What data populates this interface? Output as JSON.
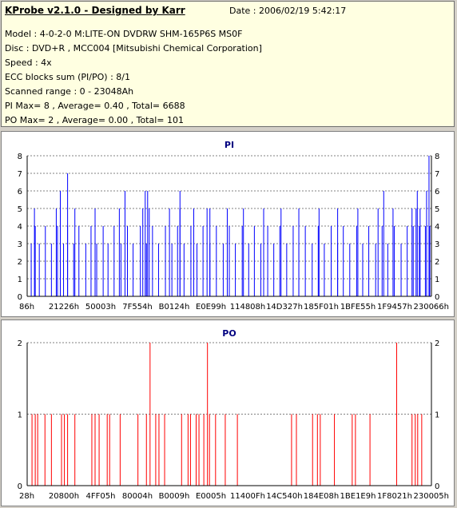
{
  "header": {
    "title": "KProbe v2.1.0 - Designed by Karr",
    "date": "Date : 2006/02/19 5:42:17",
    "lines": [
      "Model : 4-0-2-0 M:LITE-ON DVDRW SHM-165P6S MS0F",
      "Disc : DVD+R , MCC004 [Mitsubishi Chemical Corporation]",
      "Speed : 4x",
      "ECC blocks sum (PI/PO) : 8/1",
      "Scanned range : 0 - 23048Ah",
      "PI Max= 8 , Average= 0.40 , Total= 6688",
      "PO Max= 2 , Average= 0.00 , Total= 101"
    ]
  },
  "chart_data": [
    {
      "type": "bar",
      "title": "PI",
      "color": "#0000ff",
      "ylim": [
        0,
        8
      ],
      "yticks": [
        "0",
        "1",
        "2",
        "3",
        "4",
        "5",
        "6",
        "7",
        "8"
      ],
      "xticks": [
        "86h",
        "21226h",
        "50003h",
        "7F554h",
        "B0124h",
        "E0E99h",
        "114808h",
        "14D327h",
        "185F01h",
        "1BFE55h",
        "1F9457h",
        "230066h"
      ],
      "grid": true,
      "spikes": [
        {
          "x": 0.0,
          "v": 4
        },
        {
          "x": 0.01,
          "v": 3
        },
        {
          "x": 0.02,
          "v": 4
        },
        {
          "x": 0.03,
          "v": 3
        },
        {
          "x": 0.045,
          "v": 4
        },
        {
          "x": 0.06,
          "v": 3
        },
        {
          "x": 0.075,
          "v": 4
        },
        {
          "x": 0.09,
          "v": 3
        },
        {
          "x": 0.1,
          "v": 4
        },
        {
          "x": 0.115,
          "v": 3
        },
        {
          "x": 0.128,
          "v": 4
        },
        {
          "x": 0.145,
          "v": 3
        },
        {
          "x": 0.158,
          "v": 4
        },
        {
          "x": 0.172,
          "v": 3
        },
        {
          "x": 0.188,
          "v": 4
        },
        {
          "x": 0.2,
          "v": 3
        },
        {
          "x": 0.215,
          "v": 4
        },
        {
          "x": 0.232,
          "v": 3
        },
        {
          "x": 0.248,
          "v": 4
        },
        {
          "x": 0.262,
          "v": 3
        },
        {
          "x": 0.28,
          "v": 4
        },
        {
          "x": 0.295,
          "v": 3
        },
        {
          "x": 0.31,
          "v": 4
        },
        {
          "x": 0.325,
          "v": 3
        },
        {
          "x": 0.342,
          "v": 4
        },
        {
          "x": 0.358,
          "v": 3
        },
        {
          "x": 0.372,
          "v": 4
        },
        {
          "x": 0.388,
          "v": 3
        },
        {
          "x": 0.405,
          "v": 4
        },
        {
          "x": 0.42,
          "v": 3
        },
        {
          "x": 0.435,
          "v": 4
        },
        {
          "x": 0.452,
          "v": 3
        },
        {
          "x": 0.468,
          "v": 4
        },
        {
          "x": 0.485,
          "v": 3
        },
        {
          "x": 0.5,
          "v": 4
        },
        {
          "x": 0.515,
          "v": 3
        },
        {
          "x": 0.532,
          "v": 4
        },
        {
          "x": 0.548,
          "v": 3
        },
        {
          "x": 0.562,
          "v": 4
        },
        {
          "x": 0.578,
          "v": 3
        },
        {
          "x": 0.595,
          "v": 4
        },
        {
          "x": 0.61,
          "v": 3
        },
        {
          "x": 0.625,
          "v": 4
        },
        {
          "x": 0.642,
          "v": 3
        },
        {
          "x": 0.658,
          "v": 4
        },
        {
          "x": 0.672,
          "v": 3
        },
        {
          "x": 0.688,
          "v": 4
        },
        {
          "x": 0.705,
          "v": 3
        },
        {
          "x": 0.72,
          "v": 4
        },
        {
          "x": 0.735,
          "v": 3
        },
        {
          "x": 0.752,
          "v": 4
        },
        {
          "x": 0.768,
          "v": 3
        },
        {
          "x": 0.782,
          "v": 4
        },
        {
          "x": 0.798,
          "v": 3
        },
        {
          "x": 0.815,
          "v": 4
        },
        {
          "x": 0.83,
          "v": 3
        },
        {
          "x": 0.845,
          "v": 4
        },
        {
          "x": 0.862,
          "v": 3
        },
        {
          "x": 0.878,
          "v": 4
        },
        {
          "x": 0.892,
          "v": 3
        },
        {
          "x": 0.908,
          "v": 4
        },
        {
          "x": 0.925,
          "v": 3
        },
        {
          "x": 0.94,
          "v": 4
        },
        {
          "x": 0.955,
          "v": 4
        },
        {
          "x": 0.97,
          "v": 4
        },
        {
          "x": 0.985,
          "v": 4
        },
        {
          "x": 0.996,
          "v": 4
        },
        {
          "x": 0.018,
          "v": 5
        },
        {
          "x": 0.072,
          "v": 5
        },
        {
          "x": 0.118,
          "v": 5
        },
        {
          "x": 0.168,
          "v": 5
        },
        {
          "x": 0.228,
          "v": 5
        },
        {
          "x": 0.286,
          "v": 5
        },
        {
          "x": 0.302,
          "v": 5
        },
        {
          "x": 0.352,
          "v": 5
        },
        {
          "x": 0.378,
          "v": 5
        },
        {
          "x": 0.412,
          "v": 5
        },
        {
          "x": 0.445,
          "v": 5
        },
        {
          "x": 0.452,
          "v": 5
        },
        {
          "x": 0.495,
          "v": 5
        },
        {
          "x": 0.535,
          "v": 5
        },
        {
          "x": 0.585,
          "v": 5
        },
        {
          "x": 0.628,
          "v": 5
        },
        {
          "x": 0.672,
          "v": 5
        },
        {
          "x": 0.722,
          "v": 5
        },
        {
          "x": 0.768,
          "v": 5
        },
        {
          "x": 0.818,
          "v": 5
        },
        {
          "x": 0.868,
          "v": 5
        },
        {
          "x": 0.905,
          "v": 5
        },
        {
          "x": 0.952,
          "v": 5
        },
        {
          "x": 0.962,
          "v": 5
        },
        {
          "x": 0.972,
          "v": 5
        },
        {
          "x": 0.082,
          "v": 6
        },
        {
          "x": 0.242,
          "v": 6
        },
        {
          "x": 0.292,
          "v": 6
        },
        {
          "x": 0.298,
          "v": 6
        },
        {
          "x": 0.378,
          "v": 6
        },
        {
          "x": 0.882,
          "v": 6
        },
        {
          "x": 0.965,
          "v": 6
        },
        {
          "x": 0.988,
          "v": 6
        },
        {
          "x": 0.1,
          "v": 7
        },
        {
          "x": 0.994,
          "v": 8
        }
      ]
    },
    {
      "type": "bar",
      "title": "PO",
      "color": "#ff0000",
      "ylim": [
        0,
        2
      ],
      "yticks": [
        "0",
        "1",
        "2"
      ],
      "xticks": [
        "28h",
        "20800h",
        "4FF05h",
        "80004h",
        "B0009h",
        "E0005h",
        "11400Fh",
        "14C540h",
        "184E08h",
        "1BE1E9h",
        "1F8021h",
        "230005h"
      ],
      "grid": true,
      "spikes": [
        {
          "x": 0.012,
          "v": 1
        },
        {
          "x": 0.02,
          "v": 1
        },
        {
          "x": 0.026,
          "v": 1
        },
        {
          "x": 0.044,
          "v": 1
        },
        {
          "x": 0.06,
          "v": 1
        },
        {
          "x": 0.085,
          "v": 1
        },
        {
          "x": 0.092,
          "v": 1
        },
        {
          "x": 0.1,
          "v": 1
        },
        {
          "x": 0.118,
          "v": 1
        },
        {
          "x": 0.16,
          "v": 1
        },
        {
          "x": 0.168,
          "v": 1
        },
        {
          "x": 0.178,
          "v": 1
        },
        {
          "x": 0.198,
          "v": 1
        },
        {
          "x": 0.204,
          "v": 1
        },
        {
          "x": 0.23,
          "v": 1
        },
        {
          "x": 0.274,
          "v": 1
        },
        {
          "x": 0.295,
          "v": 1
        },
        {
          "x": 0.318,
          "v": 1
        },
        {
          "x": 0.326,
          "v": 1
        },
        {
          "x": 0.34,
          "v": 1
        },
        {
          "x": 0.382,
          "v": 1
        },
        {
          "x": 0.398,
          "v": 1
        },
        {
          "x": 0.404,
          "v": 1
        },
        {
          "x": 0.418,
          "v": 1
        },
        {
          "x": 0.425,
          "v": 1
        },
        {
          "x": 0.437,
          "v": 1
        },
        {
          "x": 0.451,
          "v": 1
        },
        {
          "x": 0.466,
          "v": 1
        },
        {
          "x": 0.49,
          "v": 1
        },
        {
          "x": 0.52,
          "v": 1
        },
        {
          "x": 0.654,
          "v": 1
        },
        {
          "x": 0.666,
          "v": 1
        },
        {
          "x": 0.706,
          "v": 1
        },
        {
          "x": 0.718,
          "v": 1
        },
        {
          "x": 0.725,
          "v": 1
        },
        {
          "x": 0.76,
          "v": 1
        },
        {
          "x": 0.804,
          "v": 1
        },
        {
          "x": 0.812,
          "v": 1
        },
        {
          "x": 0.848,
          "v": 1
        },
        {
          "x": 0.952,
          "v": 1
        },
        {
          "x": 0.96,
          "v": 1
        },
        {
          "x": 0.966,
          "v": 1
        },
        {
          "x": 0.976,
          "v": 1
        },
        {
          "x": 0.304,
          "v": 2
        },
        {
          "x": 0.446,
          "v": 2
        },
        {
          "x": 0.914,
          "v": 2
        }
      ]
    }
  ]
}
